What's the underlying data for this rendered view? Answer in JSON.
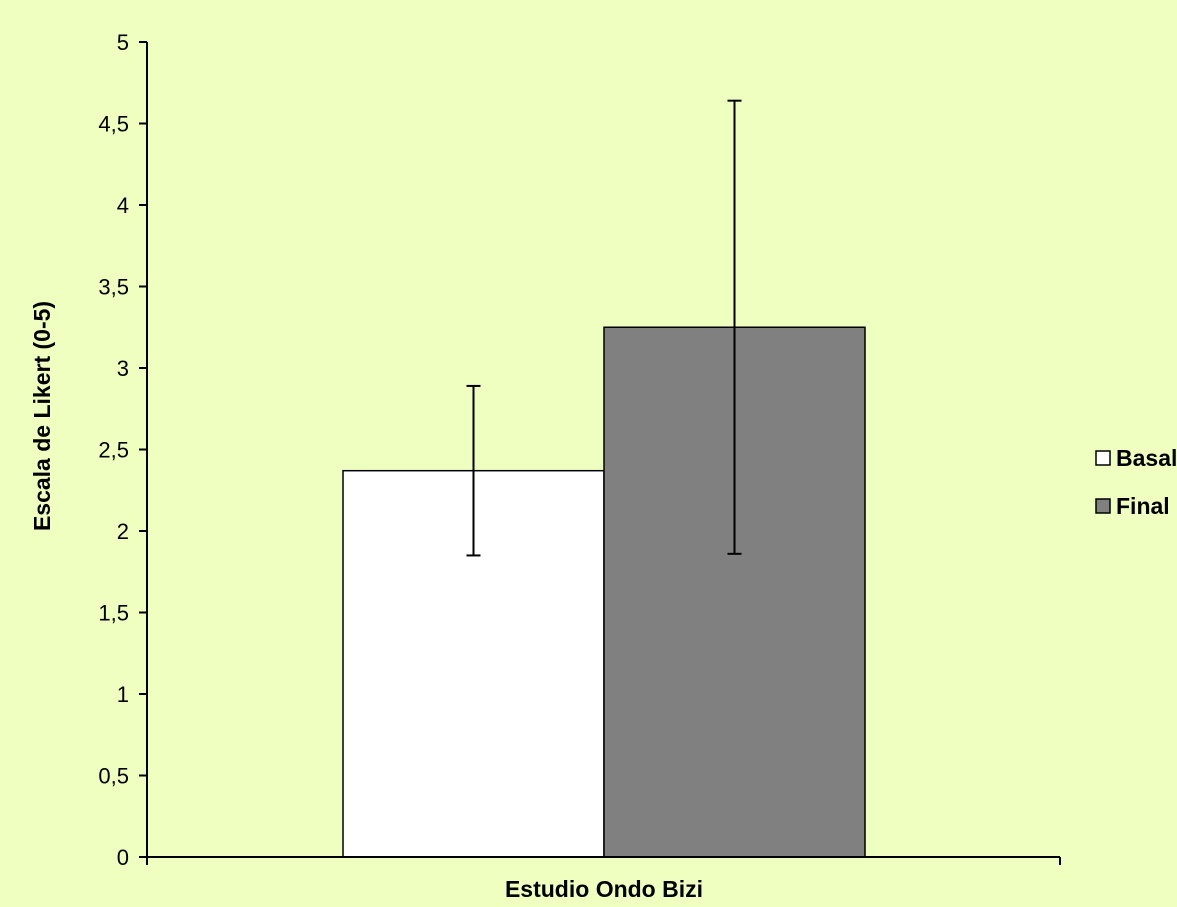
{
  "colors": {
    "background": "#efffbf",
    "axis": "#000000",
    "bar_outline": "#000000"
  },
  "chart_data": {
    "type": "bar",
    "categories": [
      "Estudio Ondo Bizi"
    ],
    "xlabel": "Estudio Ondo Bizi",
    "ylabel": "Escala de Likert (0-5)",
    "ylim": [
      0,
      5
    ],
    "yticks": [
      0,
      0.5,
      1,
      1.5,
      2,
      2.5,
      3,
      3.5,
      4,
      4.5,
      5
    ],
    "ytick_labels": [
      "0",
      "0,5",
      "1",
      "1,5",
      "2",
      "2,5",
      "3",
      "3,5",
      "4",
      "4,5",
      "5"
    ],
    "grid": false,
    "legend": "right",
    "series": [
      {
        "name": "Basal",
        "values": [
          2.37
        ],
        "error": [
          0.52
        ],
        "color": "#ffffff"
      },
      {
        "name": "Final",
        "values": [
          3.25
        ],
        "error": [
          1.39
        ],
        "color": "#808080"
      }
    ]
  }
}
